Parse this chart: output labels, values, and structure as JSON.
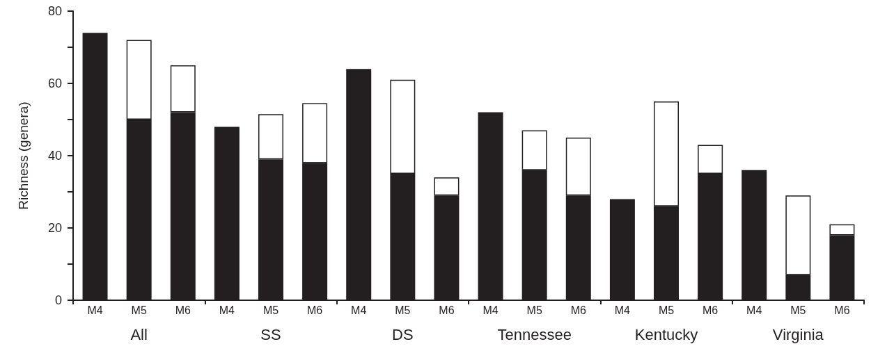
{
  "chart_data": {
    "type": "bar",
    "stacked": true,
    "ylabel": "Richness (genera)",
    "categories": [
      "M4",
      "M5",
      "M6",
      "M4",
      "M5",
      "M6",
      "M4",
      "M5",
      "M6",
      "M4",
      "M5",
      "M6",
      "M4",
      "M5",
      "M6",
      "M4",
      "M5",
      "M6"
    ],
    "series": [
      {
        "color": "#231f20",
        "values": [
          74,
          50,
          52,
          48,
          39,
          38,
          64,
          35,
          29,
          52,
          36,
          29,
          28,
          26,
          35,
          36,
          7,
          18
        ]
      },
      {
        "color": "#ffffff",
        "values": [
          null,
          22,
          13,
          null,
          12.5,
          16.5,
          null,
          26,
          5,
          null,
          11,
          16,
          null,
          29,
          8,
          null,
          22,
          3
        ]
      }
    ],
    "ylim": [
      0,
      80
    ],
    "yticks": [
      0,
      {
        "value": 10,
        "label": null
      },
      20,
      {
        "value": 30,
        "label": null
      },
      40,
      {
        "value": 50,
        "label": null
      },
      60,
      {
        "value": 70,
        "label": null
      },
      80
    ],
    "annotations": [
      "All",
      "SS",
      "DS",
      "Tennessee",
      "Kentucky",
      "Virginia"
    ]
  }
}
